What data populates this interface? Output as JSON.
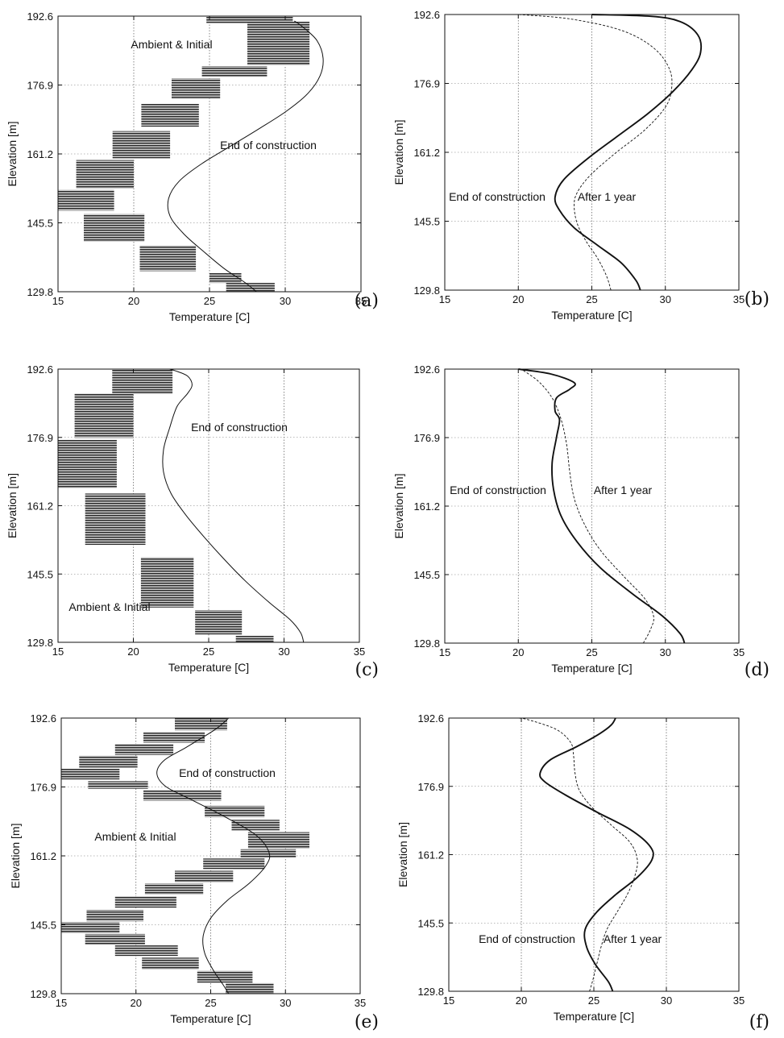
{
  "chart_data": [
    {
      "id": "a",
      "type": "line",
      "panel_label": "(a)",
      "xlabel": "Temperature [C]",
      "ylabel": "Elevation [m]",
      "xlim": [
        15,
        35
      ],
      "ylim": [
        129.8,
        192.6
      ],
      "xticks": [
        "15",
        "20",
        "25",
        "30",
        "35"
      ],
      "yticks": [
        "129.8",
        "145.5",
        "161.2",
        "176.9",
        "192.6"
      ],
      "grid": true,
      "series": [
        {
          "style": "solid-thin",
          "points": [
            [
              28.1,
              129.8
            ],
            [
              27.3,
              132
            ],
            [
              26.0,
              135
            ],
            [
              24.6,
              139
            ],
            [
              23.3,
              143
            ],
            [
              22.4,
              147
            ],
            [
              22.3,
              151
            ],
            [
              23.0,
              155
            ],
            [
              24.5,
              159
            ],
            [
              26.4,
              163
            ],
            [
              28.3,
              167
            ],
            [
              30.1,
              171
            ],
            [
              31.5,
              175
            ],
            [
              32.3,
              179
            ],
            [
              32.5,
              183
            ],
            [
              32.1,
              187
            ],
            [
              31.2,
              190
            ],
            [
              30.6,
              191.5
            ]
          ]
        }
      ],
      "hatched_blocks": [
        [
          26.1,
          29.3,
          129.8,
          131.8
        ],
        [
          25.0,
          27.1,
          131.8,
          134.1
        ],
        [
          20.4,
          24.1,
          134.5,
          140.3
        ],
        [
          16.7,
          20.7,
          141.3,
          147.5
        ],
        [
          15.0,
          18.7,
          148.3,
          153.0
        ],
        [
          16.2,
          20.0,
          153.3,
          159.8
        ],
        [
          18.6,
          22.4,
          160.2,
          166.4
        ],
        [
          20.5,
          24.3,
          167.4,
          172.6
        ],
        [
          22.5,
          25.7,
          173.8,
          178.4
        ],
        [
          24.5,
          28.8,
          178.8,
          181.2
        ],
        [
          27.5,
          31.6,
          181.4,
          191.4
        ],
        [
          24.8,
          30.5,
          191.0,
          192.6
        ]
      ],
      "annotations": [
        "Ambient & Initial",
        "End of construction"
      ]
    },
    {
      "id": "b",
      "type": "line",
      "panel_label": "(b)",
      "xlabel": "Temperature [C]",
      "ylabel": "Elevation [m]",
      "xlim": [
        15,
        35
      ],
      "ylim": [
        129.8,
        192.6
      ],
      "xticks": [
        "15",
        "20",
        "25",
        "30",
        "35"
      ],
      "yticks": [
        "129.8",
        "145.5",
        "161.2",
        "176.9",
        "192.6"
      ],
      "grid": true,
      "series": [
        {
          "name": "End of construction",
          "style": "solid-thick",
          "points": [
            [
              28.3,
              129.8
            ],
            [
              28.0,
              132
            ],
            [
              27.0,
              136
            ],
            [
              25.4,
              140
            ],
            [
              23.8,
              144
            ],
            [
              22.8,
              148
            ],
            [
              22.5,
              151
            ],
            [
              23.1,
              155
            ],
            [
              24.8,
              160
            ],
            [
              26.8,
              165
            ],
            [
              28.8,
              170
            ],
            [
              30.5,
              175
            ],
            [
              31.8,
              180
            ],
            [
              32.4,
              184
            ],
            [
              32.2,
              188
            ],
            [
              31.0,
              191
            ],
            [
              29.0,
              192.2
            ],
            [
              25.0,
              192.6
            ]
          ]
        },
        {
          "name": "After 1 year",
          "style": "dashed-thin",
          "points": [
            [
              26.3,
              129.8
            ],
            [
              26.0,
              133
            ],
            [
              25.4,
              137
            ],
            [
              24.6,
              141
            ],
            [
              24.0,
              145
            ],
            [
              23.8,
              149
            ],
            [
              24.0,
              152
            ],
            [
              24.9,
              156
            ],
            [
              26.6,
              161
            ],
            [
              28.5,
              166
            ],
            [
              29.9,
              171
            ],
            [
              30.4,
              175
            ],
            [
              30.3,
              180
            ],
            [
              29.2,
              185
            ],
            [
              27.0,
              189
            ],
            [
              23.5,
              191.6
            ],
            [
              20.0,
              192.6
            ]
          ]
        }
      ],
      "annotations": [
        "End of construction",
        "After 1 year"
      ]
    },
    {
      "id": "c",
      "type": "line",
      "panel_label": "(c)",
      "xlabel": "Temperature [C]",
      "ylabel": "Elevation [m]",
      "xlim": [
        15,
        35
      ],
      "ylim": [
        129.8,
        192.6
      ],
      "xticks": [
        "15",
        "20",
        "25",
        "30",
        "35"
      ],
      "yticks": [
        "129.8",
        "145.5",
        "161.2",
        "176.9",
        "192.6"
      ],
      "grid": true,
      "series": [
        {
          "style": "solid-thin",
          "points": [
            [
              31.3,
              129.8
            ],
            [
              31.1,
              132
            ],
            [
              30.4,
              135
            ],
            [
              29.0,
              139
            ],
            [
              27.4,
              144
            ],
            [
              26.0,
              149
            ],
            [
              24.7,
              154
            ],
            [
              23.5,
              159
            ],
            [
              22.5,
              164
            ],
            [
              22.0,
              169
            ],
            [
              22.0,
              174
            ],
            [
              22.4,
              179
            ],
            [
              22.9,
              184
            ],
            [
              23.6,
              187
            ],
            [
              23.9,
              189
            ],
            [
              23.6,
              191
            ],
            [
              22.8,
              192.2
            ],
            [
              22.4,
              192.6
            ]
          ]
        }
      ],
      "hatched_blocks": [
        [
          26.8,
          29.3,
          129.8,
          131.3
        ],
        [
          24.1,
          27.2,
          131.6,
          137.2
        ],
        [
          20.5,
          24.0,
          137.8,
          149.3
        ],
        [
          16.8,
          20.8,
          152.2,
          164.0
        ],
        [
          15.0,
          18.9,
          165.3,
          176.4
        ],
        [
          16.1,
          20.0,
          176.8,
          187.0
        ],
        [
          18.6,
          22.6,
          186.9,
          192.6
        ]
      ],
      "annotations": [
        "End of construction",
        "Ambient & Initial"
      ]
    },
    {
      "id": "d",
      "type": "line",
      "panel_label": "(d)",
      "xlabel": "Temperature [C]",
      "ylabel": "Elevation [m]",
      "xlim": [
        15,
        35
      ],
      "ylim": [
        129.8,
        192.6
      ],
      "xticks": [
        "15",
        "20",
        "25",
        "30",
        "35"
      ],
      "yticks": [
        "129.8",
        "145.5",
        "161.2",
        "176.9",
        "192.6"
      ],
      "grid": true,
      "series": [
        {
          "name": "End of construction",
          "style": "solid-thick",
          "points": [
            [
              31.3,
              129.8
            ],
            [
              31.0,
              132
            ],
            [
              29.8,
              136
            ],
            [
              27.8,
              141
            ],
            [
              25.6,
              147
            ],
            [
              24.0,
              153
            ],
            [
              22.9,
              159
            ],
            [
              22.4,
              165
            ],
            [
              22.3,
              171
            ],
            [
              22.6,
              177
            ],
            [
              22.8,
              181
            ],
            [
              22.5,
              183
            ],
            [
              22.6,
              186
            ],
            [
              23.5,
              188
            ],
            [
              23.8,
              189.5
            ],
            [
              22.2,
              191.5
            ],
            [
              20.0,
              192.6
            ]
          ]
        },
        {
          "name": "After 1 year",
          "style": "dashed-thin",
          "points": [
            [
              28.5,
              129.8
            ],
            [
              29.0,
              133
            ],
            [
              29.2,
              136
            ],
            [
              28.6,
              140
            ],
            [
              27.2,
              145
            ],
            [
              25.6,
              151
            ],
            [
              24.5,
              157
            ],
            [
              23.8,
              163
            ],
            [
              23.5,
              169
            ],
            [
              23.3,
              175
            ],
            [
              23.0,
              180
            ],
            [
              22.6,
              184
            ],
            [
              22.1,
              187
            ],
            [
              21.3,
              190
            ],
            [
              20.2,
              192.6
            ]
          ]
        }
      ],
      "annotations": [
        "End of construction",
        "After 1 year"
      ]
    },
    {
      "id": "e",
      "type": "line",
      "panel_label": "(e)",
      "xlabel": "Temperature [C]",
      "ylabel": "Elevation [m]",
      "xlim": [
        15,
        35
      ],
      "ylim": [
        129.8,
        192.6
      ],
      "xticks": [
        "15",
        "20",
        "25",
        "30",
        "35"
      ],
      "yticks": [
        "129.8",
        "145.5",
        "161.2",
        "176.9",
        "192.6"
      ],
      "grid": true,
      "series": [
        {
          "style": "solid-thin",
          "points": [
            [
              26.2,
              129.8
            ],
            [
              25.8,
              132
            ],
            [
              25.2,
              135
            ],
            [
              24.6,
              139
            ],
            [
              24.5,
              143
            ],
            [
              25.0,
              147
            ],
            [
              26.1,
              151
            ],
            [
              27.6,
              155
            ],
            [
              28.7,
              159
            ],
            [
              28.9,
              162
            ],
            [
              28.0,
              166
            ],
            [
              26.0,
              170
            ],
            [
              23.7,
              174
            ],
            [
              22.0,
              177
            ],
            [
              21.4,
              180
            ],
            [
              21.9,
              183
            ],
            [
              23.4,
              186
            ],
            [
              25.3,
              190
            ],
            [
              26.2,
              192.6
            ]
          ]
        }
      ],
      "hatched_blocks": [
        [
          26.0,
          29.2,
          129.8,
          132.2
        ],
        [
          24.1,
          27.8,
          132.3,
          135.0
        ],
        [
          20.4,
          24.2,
          135.3,
          138.0
        ],
        [
          18.6,
          22.8,
          138.4,
          140.8
        ],
        [
          16.6,
          20.6,
          141.0,
          143.4
        ],
        [
          15.0,
          18.9,
          143.6,
          146.1
        ],
        [
          16.7,
          20.5,
          146.3,
          148.9
        ],
        [
          18.6,
          22.7,
          149.4,
          152.0
        ],
        [
          20.6,
          24.5,
          152.4,
          154.9
        ],
        [
          22.6,
          26.5,
          155.2,
          157.8
        ],
        [
          24.5,
          28.6,
          158.2,
          160.6
        ],
        [
          27.0,
          30.7,
          160.8,
          162.7
        ],
        [
          27.5,
          31.6,
          162.9,
          166.6
        ],
        [
          26.4,
          29.6,
          167.0,
          169.4
        ],
        [
          24.6,
          28.6,
          170.0,
          172.6
        ],
        [
          20.5,
          25.7,
          173.8,
          176.2
        ],
        [
          16.8,
          20.8,
          176.5,
          178.2
        ],
        [
          15.0,
          18.9,
          178.6,
          181.1
        ],
        [
          16.2,
          20.1,
          181.3,
          184.0
        ],
        [
          18.6,
          22.5,
          184.2,
          186.7
        ],
        [
          20.5,
          24.6,
          187.0,
          189.3
        ],
        [
          22.6,
          26.1,
          189.8,
          192.6
        ]
      ],
      "annotations": [
        "End of construction",
        "Ambient & Initial"
      ]
    },
    {
      "id": "f",
      "type": "line",
      "panel_label": "(f)",
      "xlabel": "Temperature [C]",
      "ylabel": "Elevation [m]",
      "xlim": [
        15,
        35
      ],
      "ylim": [
        129.8,
        192.6
      ],
      "xticks": [
        "15",
        "20",
        "25",
        "30",
        "35"
      ],
      "yticks": [
        "129.8",
        "145.5",
        "161.2",
        "176.9",
        "192.6"
      ],
      "grid": true,
      "series": [
        {
          "name": "End of construction",
          "style": "solid-thick",
          "points": [
            [
              26.3,
              129.8
            ],
            [
              26.0,
              132
            ],
            [
              25.1,
              136
            ],
            [
              24.5,
              140
            ],
            [
              24.4,
              144
            ],
            [
              25.2,
              148
            ],
            [
              26.5,
              152
            ],
            [
              28.0,
              156
            ],
            [
              29.0,
              160
            ],
            [
              28.9,
              163
            ],
            [
              27.5,
              167
            ],
            [
              25.2,
              171
            ],
            [
              23.0,
              175
            ],
            [
              21.6,
              178
            ],
            [
              21.3,
              180
            ],
            [
              22.0,
              183
            ],
            [
              23.8,
              186
            ],
            [
              25.4,
              189
            ],
            [
              26.2,
              191
            ],
            [
              26.5,
              192.6
            ]
          ]
        },
        {
          "name": "After 1 year",
          "style": "dashed-thin",
          "points": [
            [
              24.7,
              129.8
            ],
            [
              24.9,
              132
            ],
            [
              25.2,
              136
            ],
            [
              25.5,
              140
            ],
            [
              25.9,
              144
            ],
            [
              26.6,
              148
            ],
            [
              27.3,
              152
            ],
            [
              27.8,
              156
            ],
            [
              28.0,
              160
            ],
            [
              27.5,
              164
            ],
            [
              26.2,
              168
            ],
            [
              24.9,
              172
            ],
            [
              24.0,
              176
            ],
            [
              23.7,
              180
            ],
            [
              23.6,
              184
            ],
            [
              23.4,
              187
            ],
            [
              22.4,
              190
            ],
            [
              20.5,
              192.2
            ],
            [
              19.8,
              192.6
            ]
          ]
        }
      ],
      "annotations": [
        "End of construction",
        "After 1 year"
      ]
    }
  ]
}
